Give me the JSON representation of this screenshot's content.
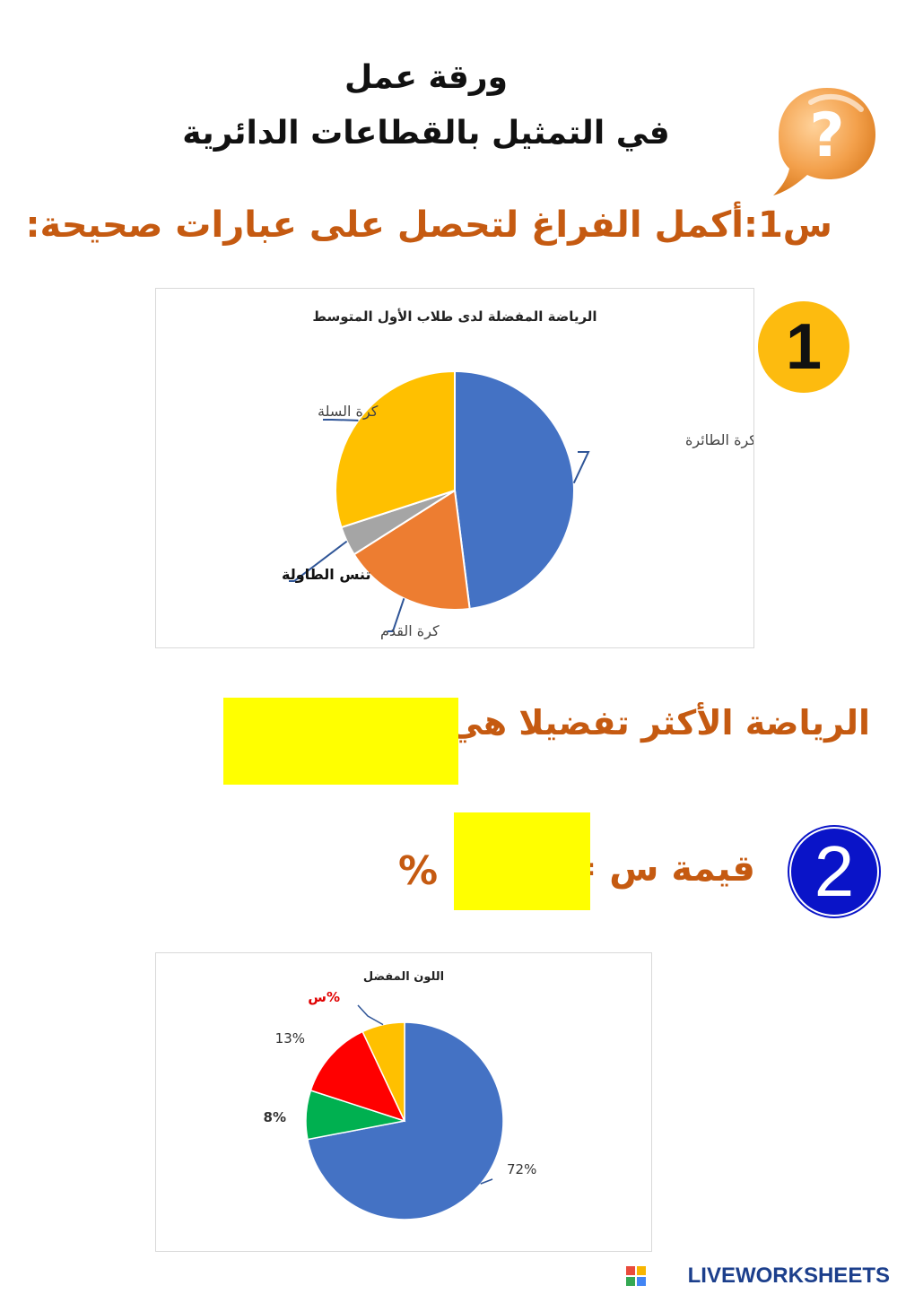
{
  "header": {
    "line1": "ورقة عمل",
    "line2": "في التمثيل بالقطاعات الدائرية"
  },
  "question1": {
    "heading": "س1:أكمل الفراغ لتحصل على عبارات صحيحة:",
    "item1_number": "1",
    "item1_statement": "الرياضة الأكثر تفضيلا هي:",
    "item2_number": "2",
    "item2_statement": "قيمة س =",
    "item2_unit": "%"
  },
  "chart_data": [
    {
      "type": "pie",
      "title": "الرياضة المفضلة لدى طلاب الأول المتوسط",
      "categories": [
        "كرة الطائرة",
        "كرة القدم",
        "تنس الطاولة",
        "كرة السلة"
      ],
      "values": [
        48,
        18,
        4,
        30
      ],
      "colors": [
        "#4472c4",
        "#ed7d31",
        "#a5a5a5",
        "#ffc000"
      ]
    },
    {
      "type": "pie",
      "title": "اللون المفضل",
      "labels": [
        "72%",
        "8%",
        "13%",
        "س%"
      ],
      "values": [
        72,
        8,
        13,
        7
      ],
      "colors": [
        "#4472c4",
        "#00b050",
        "#ff0000",
        "#ffc000"
      ],
      "label_colors": [
        "#333333",
        "#333333",
        "#333333",
        "#e00000"
      ]
    }
  ],
  "icons": {
    "question_bubble": "question-mark-speech-bubble-icon"
  },
  "footer": {
    "brand": "LIVEWORKSHEETS"
  }
}
